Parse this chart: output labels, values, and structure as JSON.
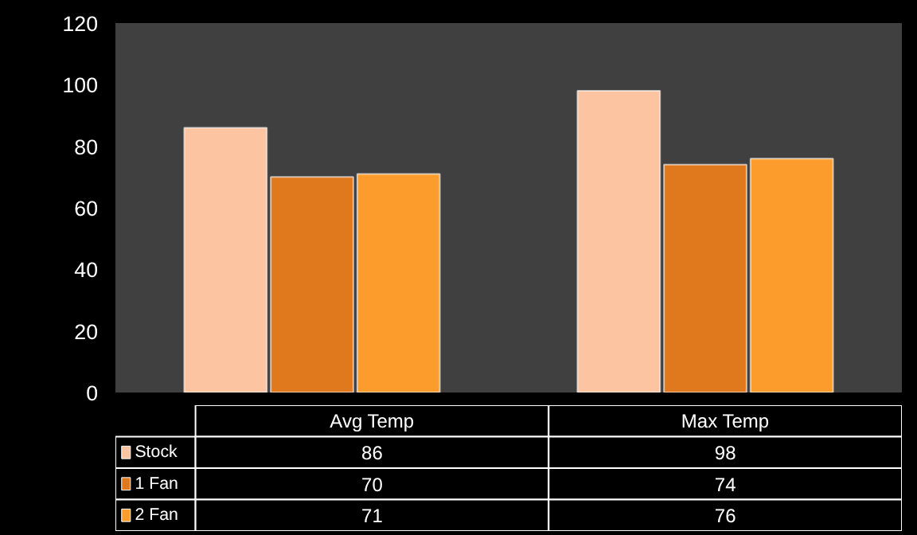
{
  "chart_data": {
    "type": "bar",
    "categories": [
      "Avg Temp",
      "Max Temp"
    ],
    "series": [
      {
        "name": "Stock",
        "color": "#fcc4a0",
        "values": [
          86,
          98
        ]
      },
      {
        "name": "1 Fan",
        "color": "#e0781e",
        "values": [
          70,
          74
        ]
      },
      {
        "name": "2 Fan",
        "color": "#fc9c2c",
        "values": [
          71,
          76
        ]
      }
    ],
    "ylim": [
      0,
      120
    ],
    "yticks": [
      0,
      20,
      40,
      60,
      80,
      100,
      120
    ],
    "data_labels": true,
    "legend": "bottom"
  }
}
